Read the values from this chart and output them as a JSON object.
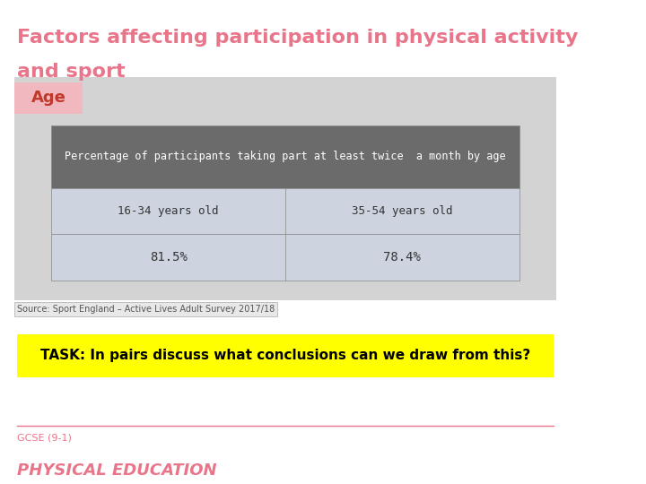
{
  "title_line1": "Factors affecting participation in physical activity",
  "title_line2": "and sport",
  "title_color": "#e8758a",
  "age_label": "Age",
  "age_label_color": "#c0392b",
  "age_label_bg": "#f2b8c0",
  "table_header": "Percentage of participants taking part at least twice  a month by age",
  "table_header_bg": "#6b6b6b",
  "table_header_color": "#ffffff",
  "col1_label": "16-34 years old",
  "col1_value": "81.5%",
  "col2_label": "35-54 years old",
  "col2_value": "78.4%",
  "table_row_bg": "#cdd4e0",
  "table_outer_bg": "#d3d3d3",
  "main_bg": "#ffffff",
  "source_text": "Source: Sport England – Active Lives Adult Survey 2017/18",
  "source_fontsize": 7,
  "task_text": "TASK: In pairs discuss what conclusions can we draw from this?",
  "task_bg": "#ffff00",
  "task_color": "#000000",
  "footer_line1": "GCSE (9-1)",
  "footer_line2": "PHYSICAL EDUCATION",
  "footer_color": "#e8758a",
  "footer_line1_fontsize": 8,
  "footer_line2_fontsize": 13
}
